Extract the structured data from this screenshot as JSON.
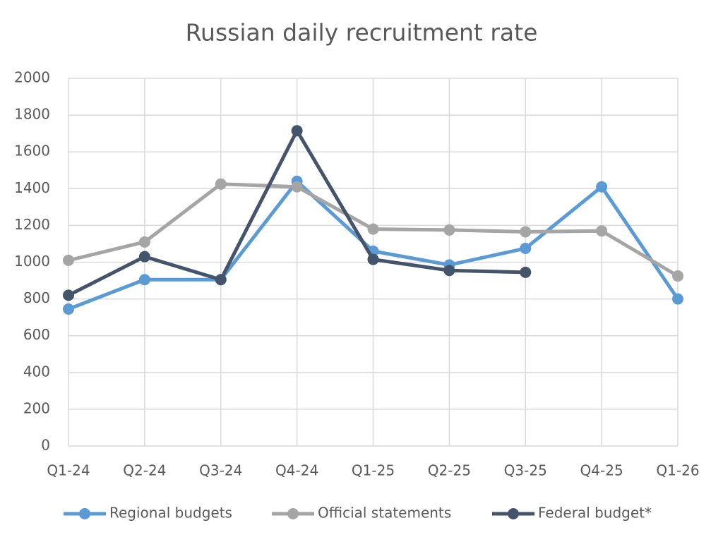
{
  "chart_data": {
    "type": "line",
    "title": "Russian daily recruitment rate",
    "categories": [
      "Q1-24",
      "Q2-24",
      "Q3-24",
      "Q4-24",
      "Q1-25",
      "Q2-25",
      "Q3-25",
      "Q4-25",
      "Q1-26"
    ],
    "series": [
      {
        "name": "Regional budgets",
        "color": "#5b9bd5",
        "values": [
          745,
          905,
          905,
          1440,
          1060,
          985,
          1075,
          1410,
          800
        ]
      },
      {
        "name": "Official statements",
        "color": "#a5a5a5",
        "values": [
          1010,
          1110,
          1425,
          1410,
          1180,
          1175,
          1165,
          1170,
          925
        ]
      },
      {
        "name": "Federal budget*",
        "color": "#44546a",
        "values": [
          820,
          1030,
          905,
          1715,
          1015,
          955,
          945,
          null,
          null
        ]
      }
    ],
    "ylim": [
      0,
      2000
    ],
    "yticks": [
      0,
      200,
      400,
      600,
      800,
      1000,
      1200,
      1400,
      1600,
      1800,
      2000
    ],
    "grid": true,
    "legend": "bottom"
  }
}
